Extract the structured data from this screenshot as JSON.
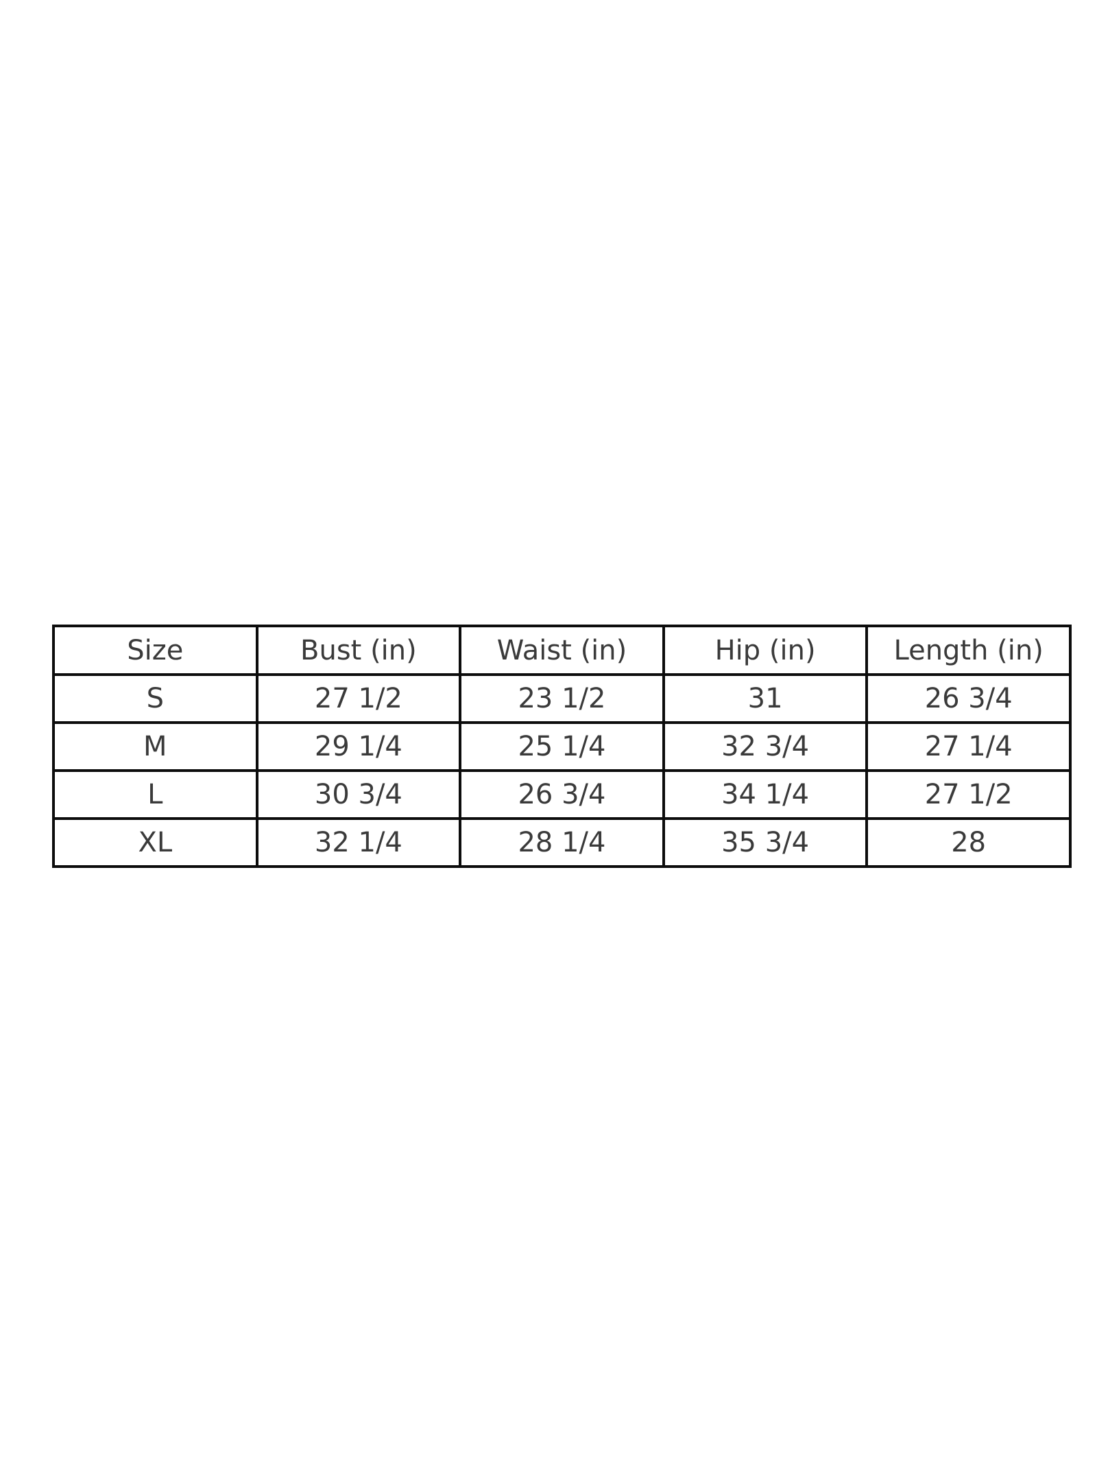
{
  "chart_data": {
    "type": "table",
    "title": "",
    "columns": [
      "Size",
      "Bust (in)",
      "Waist (in)",
      "Hip (in)",
      "Length (in)"
    ],
    "rows": [
      [
        "S",
        "27 1/2",
        "23 1/2",
        "31",
        "26 3/4"
      ],
      [
        "M",
        "29 1/4",
        "25 1/4",
        "32 3/4",
        "27 1/4"
      ],
      [
        "L",
        "30 3/4",
        "26 3/4",
        "34 1/4",
        "27 1/2"
      ],
      [
        "XL",
        "32 1/4",
        "28 1/4",
        "35 3/4",
        "28"
      ]
    ],
    "layout": {
      "grid": true,
      "legend": "none",
      "columns_equal_width": true
    },
    "colors": {
      "background": "#ffffff",
      "border": "#0c0c0c",
      "text": "#3a3a3a"
    }
  }
}
